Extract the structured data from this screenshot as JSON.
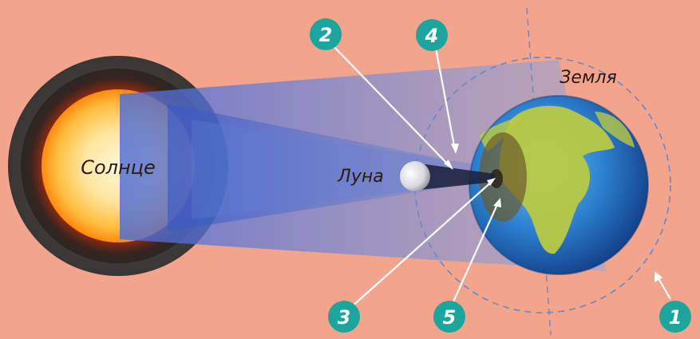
{
  "labels": {
    "sun": "Солнце",
    "moon": "Луна",
    "earth": "Земля"
  },
  "markers": [
    "1",
    "2",
    "3",
    "4",
    "5"
  ],
  "colors": {
    "background": "#f2a58c",
    "marker": "#1ba59c",
    "light_beam": "#6f8fd8",
    "orbit": "#6a86c4"
  }
}
